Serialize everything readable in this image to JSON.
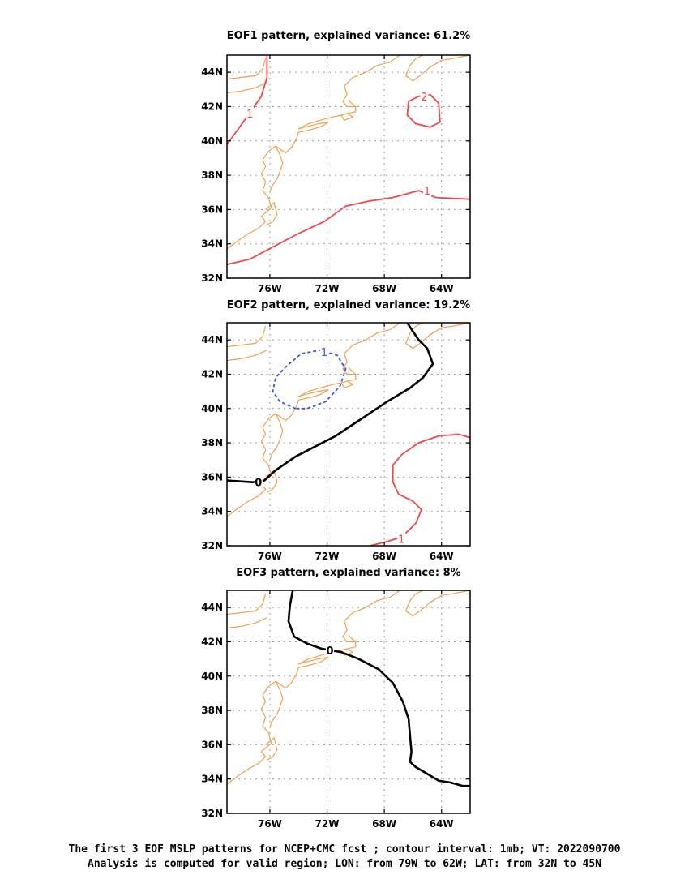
{
  "figure": {
    "caption_line1": "The first 3 EOF MSLP patterns for NCEP+CMC fcst ; contour interval: 1mb; VT: 2022090700",
    "caption_line2": "Analysis is computed for valid region; LON: from 79W to 62W; LAT: from 32N to 45N",
    "coast_color": "#f0a050",
    "positive_color": "#f04848",
    "zero_color": "#000000",
    "negative_color": "#3355ee"
  },
  "chart_data": [
    {
      "type": "contour-map",
      "title": "EOF1 pattern, explained variance: 61.2%",
      "xlim": [
        -79,
        -62
      ],
      "ylim": [
        32,
        45
      ],
      "x_ticks": [
        -76,
        -72,
        -68,
        -64
      ],
      "x_tick_labels": [
        "76W",
        "72W",
        "68W",
        "64W"
      ],
      "y_ticks": [
        32,
        34,
        36,
        38,
        40,
        42,
        44
      ],
      "y_tick_labels": [
        "32N",
        "34N",
        "36N",
        "38N",
        "40N",
        "42N",
        "44N"
      ],
      "grid": true,
      "contours": [
        {
          "level": 1,
          "label": "1",
          "style": "positive",
          "points": [
            [
              -79,
              39.8
            ],
            [
              -78.3,
              40.6
            ],
            [
              -77.6,
              41.4
            ],
            [
              -76.6,
              42.6
            ],
            [
              -76.2,
              43.7
            ],
            [
              -76.2,
              45
            ]
          ],
          "label_at": [
            -77.4,
            41.6
          ]
        },
        {
          "level": 1,
          "label": "1",
          "style": "positive",
          "points": [
            [
              -79,
              32.8
            ],
            [
              -77.4,
              33.1
            ],
            [
              -75.6,
              33.9
            ],
            [
              -74,
              34.6
            ],
            [
              -72.2,
              35.3
            ],
            [
              -70.7,
              36.2
            ],
            [
              -69,
              36.5
            ],
            [
              -67.4,
              36.7
            ],
            [
              -65.6,
              37.1
            ],
            [
              -64.4,
              36.7
            ],
            [
              -62,
              36.6
            ]
          ],
          "label_at": [
            -65,
            37.1
          ]
        },
        {
          "level": 2,
          "label": "2",
          "style": "positive",
          "points": [
            [
              -65.6,
              42.6
            ],
            [
              -66.3,
              42.3
            ],
            [
              -66.4,
              41.5
            ],
            [
              -65.8,
              41
            ],
            [
              -64.8,
              40.8
            ],
            [
              -64.1,
              41.1
            ],
            [
              -64.2,
              42.2
            ],
            [
              -64.8,
              42.7
            ],
            [
              -65.6,
              42.6
            ]
          ],
          "label_at": [
            -65.2,
            42.6
          ]
        }
      ]
    },
    {
      "type": "contour-map",
      "title": "EOF2 pattern, explained variance: 19.2%",
      "xlim": [
        -79,
        -62
      ],
      "ylim": [
        32,
        45
      ],
      "x_ticks": [
        -76,
        -72,
        -68,
        -64
      ],
      "x_tick_labels": [
        "76W",
        "72W",
        "68W",
        "64W"
      ],
      "y_ticks": [
        32,
        34,
        36,
        38,
        40,
        42,
        44
      ],
      "y_tick_labels": [
        "32N",
        "34N",
        "36N",
        "38N",
        "40N",
        "42N",
        "44N"
      ],
      "grid": true,
      "contours": [
        {
          "level": 0,
          "label": "0",
          "style": "zero",
          "points": [
            [
              -79,
              35.8
            ],
            [
              -77.2,
              35.7
            ],
            [
              -76.4,
              35.8
            ],
            [
              -75.6,
              36.4
            ],
            [
              -74.2,
              37.2
            ],
            [
              -72.8,
              37.8
            ],
            [
              -71.4,
              38.4
            ],
            [
              -69.6,
              39.4
            ],
            [
              -67.8,
              40.4
            ],
            [
              -66.2,
              41.2
            ],
            [
              -65.3,
              41.8
            ],
            [
              -64.6,
              42.6
            ],
            [
              -65,
              43.5
            ],
            [
              -65.6,
              44
            ],
            [
              -66,
              44.5
            ],
            [
              -66.4,
              45
            ]
          ],
          "label_at": [
            -76.8,
            35.7
          ]
        },
        {
          "level": -1,
          "label": "1",
          "style": "negative",
          "points": [
            [
              -74.2,
              40
            ],
            [
              -75.3,
              40.4
            ],
            [
              -75.8,
              41
            ],
            [
              -75.6,
              41.8
            ],
            [
              -74.8,
              42.5
            ],
            [
              -73.8,
              43.2
            ],
            [
              -72.5,
              43.4
            ],
            [
              -71.3,
              43.1
            ],
            [
              -70.7,
              42.3
            ],
            [
              -71.1,
              41.3
            ],
            [
              -72.1,
              40.4
            ],
            [
              -73.4,
              40
            ],
            [
              -74.2,
              40
            ]
          ],
          "label_at": [
            -72.2,
            43.3
          ]
        },
        {
          "level": 1,
          "label": "1",
          "style": "positive",
          "points": [
            [
              -62,
              38.3
            ],
            [
              -62.8,
              38.5
            ],
            [
              -64.2,
              38.4
            ],
            [
              -65.6,
              38
            ],
            [
              -66.8,
              37.3
            ],
            [
              -67.4,
              36.7
            ],
            [
              -67.4,
              35.7
            ],
            [
              -67,
              35
            ],
            [
              -66,
              34.6
            ],
            [
              -65.4,
              34.1
            ],
            [
              -65.8,
              33.3
            ],
            [
              -66.8,
              32.5
            ],
            [
              -68,
              32.2
            ],
            [
              -69,
              32
            ]
          ],
          "label_at": [
            -66.8,
            32.4
          ]
        }
      ]
    },
    {
      "type": "contour-map",
      "title": "EOF3 pattern, explained variance: 8%",
      "xlim": [
        -79,
        -62
      ],
      "ylim": [
        32,
        45
      ],
      "x_ticks": [
        -76,
        -72,
        -68,
        -64
      ],
      "x_tick_labels": [
        "76W",
        "72W",
        "68W",
        "64W"
      ],
      "y_ticks": [
        32,
        34,
        36,
        38,
        40,
        42,
        44
      ],
      "y_tick_labels": [
        "32N",
        "34N",
        "36N",
        "38N",
        "40N",
        "42N",
        "44N"
      ],
      "grid": true,
      "contours": [
        {
          "level": 0,
          "label": "0",
          "style": "zero",
          "points": [
            [
              -74.4,
              45
            ],
            [
              -74.6,
              44.1
            ],
            [
              -74.7,
              43.2
            ],
            [
              -74.3,
              42.3
            ],
            [
              -73.4,
              41.9
            ],
            [
              -72.4,
              41.6
            ],
            [
              -71,
              41.4
            ],
            [
              -69.8,
              41
            ],
            [
              -68.4,
              40.4
            ],
            [
              -67.4,
              39.6
            ],
            [
              -66.7,
              38.5
            ],
            [
              -66.3,
              37.5
            ],
            [
              -66.2,
              36.5
            ],
            [
              -66.1,
              35.6
            ],
            [
              -66.2,
              35
            ],
            [
              -65.8,
              34.7
            ],
            [
              -65,
              34.3
            ],
            [
              -64.2,
              33.9
            ],
            [
              -63.4,
              33.8
            ],
            [
              -62.5,
              33.6
            ],
            [
              -62,
              33.6
            ]
          ],
          "label_at": [
            -71.8,
            41.5
          ]
        }
      ]
    }
  ]
}
